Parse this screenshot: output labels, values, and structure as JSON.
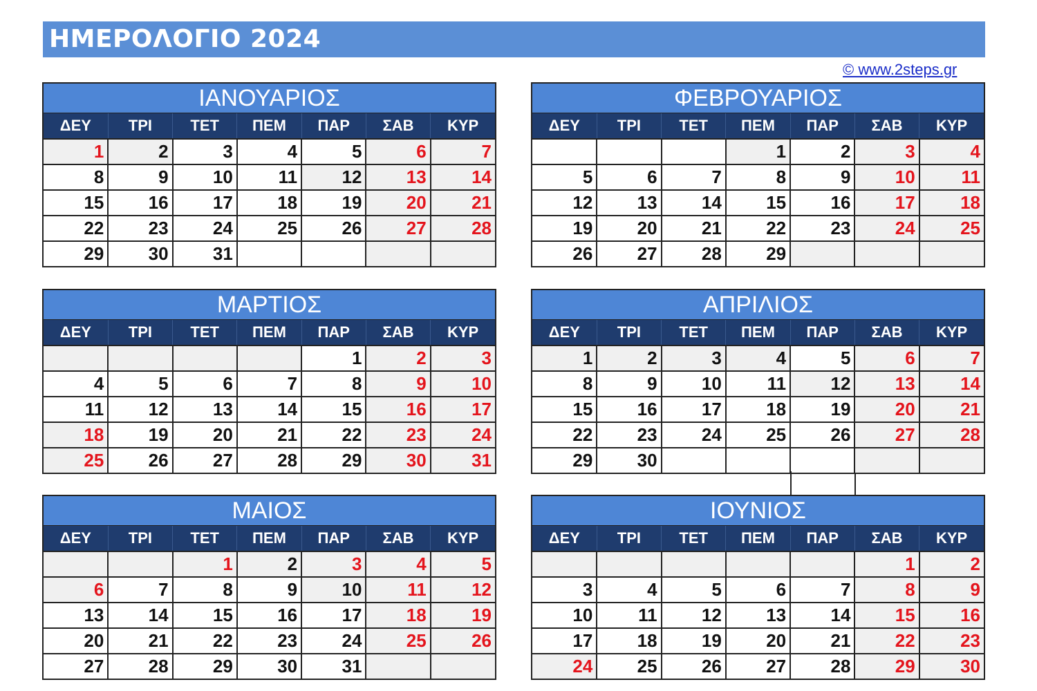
{
  "title": "ΗΜΕΡΟΛΟΓΙΟ 2024",
  "copyright": "© www.2steps.gr",
  "weekdays": [
    "ΔΕΥ",
    "ΤΡΙ",
    "ΤΕΤ",
    "ΠΕΜ",
    "ΠΑΡ",
    "ΣΑΒ",
    "ΚΥΡ"
  ],
  "colors": {
    "title_bg": "#5b8fd6",
    "month_bg": "#4e86d6",
    "weekday_bg": "#1f3c6e",
    "holiday_red": "#e4141c",
    "shaded_cell": "#f0f0f0"
  },
  "months": [
    {
      "name": "ΙΑΝΟΥΑΡΙΟΣ",
      "rows": [
        [
          {
            "d": "1",
            "red": true,
            "sh": true
          },
          {
            "d": "2",
            "sh": true
          },
          {
            "d": "3"
          },
          {
            "d": "4"
          },
          {
            "d": "5"
          },
          {
            "d": "6",
            "red": true,
            "sh": true
          },
          {
            "d": "7",
            "red": true,
            "sh": true
          }
        ],
        [
          {
            "d": "8"
          },
          {
            "d": "9"
          },
          {
            "d": "10"
          },
          {
            "d": "11"
          },
          {
            "d": "12",
            "sh": true
          },
          {
            "d": "13",
            "red": true,
            "sh": true
          },
          {
            "d": "14",
            "red": true,
            "sh": true
          }
        ],
        [
          {
            "d": "15"
          },
          {
            "d": "16"
          },
          {
            "d": "17"
          },
          {
            "d": "18"
          },
          {
            "d": "19"
          },
          {
            "d": "20",
            "red": true,
            "sh": true
          },
          {
            "d": "21",
            "red": true,
            "sh": true
          }
        ],
        [
          {
            "d": "22"
          },
          {
            "d": "23"
          },
          {
            "d": "24"
          },
          {
            "d": "25"
          },
          {
            "d": "26"
          },
          {
            "d": "27",
            "red": true,
            "sh": true
          },
          {
            "d": "28",
            "red": true,
            "sh": true
          }
        ],
        [
          {
            "d": "29"
          },
          {
            "d": "30"
          },
          {
            "d": "31"
          },
          {
            "d": ""
          },
          {
            "d": ""
          },
          {
            "d": "",
            "sh": true
          },
          {
            "d": "",
            "sh": true
          }
        ]
      ]
    },
    {
      "name": "ΦΕΒΡΟΥΑΡΙΟΣ",
      "rows": [
        [
          {
            "d": ""
          },
          {
            "d": ""
          },
          {
            "d": ""
          },
          {
            "d": "1",
            "sh": true
          },
          {
            "d": "2"
          },
          {
            "d": "3",
            "red": true,
            "sh": true
          },
          {
            "d": "4",
            "red": true,
            "sh": true
          }
        ],
        [
          {
            "d": "5"
          },
          {
            "d": "6"
          },
          {
            "d": "7"
          },
          {
            "d": "8"
          },
          {
            "d": "9"
          },
          {
            "d": "10",
            "red": true,
            "sh": true
          },
          {
            "d": "11",
            "red": true,
            "sh": true
          }
        ],
        [
          {
            "d": "12"
          },
          {
            "d": "13"
          },
          {
            "d": "14"
          },
          {
            "d": "15"
          },
          {
            "d": "16"
          },
          {
            "d": "17",
            "red": true,
            "sh": true
          },
          {
            "d": "18",
            "red": true,
            "sh": true
          }
        ],
        [
          {
            "d": "19"
          },
          {
            "d": "20"
          },
          {
            "d": "21"
          },
          {
            "d": "22"
          },
          {
            "d": "23"
          },
          {
            "d": "24",
            "red": true,
            "sh": true
          },
          {
            "d": "25",
            "red": true,
            "sh": true
          }
        ],
        [
          {
            "d": "26"
          },
          {
            "d": "27"
          },
          {
            "d": "28"
          },
          {
            "d": "29"
          },
          {
            "d": "",
            "sh": true
          },
          {
            "d": "",
            "sh": true
          },
          {
            "d": "",
            "sh": true
          }
        ]
      ]
    },
    {
      "name": "ΜΑΡΤΙΟΣ",
      "rows": [
        [
          {
            "d": "",
            "sh": true
          },
          {
            "d": "",
            "sh": true
          },
          {
            "d": "",
            "sh": true
          },
          {
            "d": "",
            "sh": true
          },
          {
            "d": "1"
          },
          {
            "d": "2",
            "red": true,
            "sh": true
          },
          {
            "d": "3",
            "red": true,
            "sh": true
          }
        ],
        [
          {
            "d": "4"
          },
          {
            "d": "5"
          },
          {
            "d": "6"
          },
          {
            "d": "7"
          },
          {
            "d": "8"
          },
          {
            "d": "9",
            "red": true,
            "sh": true
          },
          {
            "d": "10",
            "red": true,
            "sh": true
          }
        ],
        [
          {
            "d": "11"
          },
          {
            "d": "12"
          },
          {
            "d": "13"
          },
          {
            "d": "14"
          },
          {
            "d": "15"
          },
          {
            "d": "16",
            "red": true,
            "sh": true
          },
          {
            "d": "17",
            "red": true,
            "sh": true
          }
        ],
        [
          {
            "d": "18",
            "red": true,
            "sh": true
          },
          {
            "d": "19"
          },
          {
            "d": "20"
          },
          {
            "d": "21"
          },
          {
            "d": "22"
          },
          {
            "d": "23",
            "red": true,
            "sh": true
          },
          {
            "d": "24",
            "red": true,
            "sh": true
          }
        ],
        [
          {
            "d": "25",
            "red": true,
            "sh": true
          },
          {
            "d": "26"
          },
          {
            "d": "27"
          },
          {
            "d": "28"
          },
          {
            "d": "29"
          },
          {
            "d": "30",
            "red": true,
            "sh": true
          },
          {
            "d": "31",
            "red": true,
            "sh": true
          }
        ]
      ]
    },
    {
      "name": "ΑΠΡΙΛΙΟΣ",
      "rows": [
        [
          {
            "d": "1",
            "sh": true
          },
          {
            "d": "2",
            "sh": true
          },
          {
            "d": "3",
            "sh": true
          },
          {
            "d": "4",
            "sh": true
          },
          {
            "d": "5"
          },
          {
            "d": "6",
            "red": true,
            "sh": true
          },
          {
            "d": "7",
            "red": true,
            "sh": true
          }
        ],
        [
          {
            "d": "8"
          },
          {
            "d": "9"
          },
          {
            "d": "10"
          },
          {
            "d": "11"
          },
          {
            "d": "12",
            "sh": true
          },
          {
            "d": "13",
            "red": true,
            "sh": true
          },
          {
            "d": "14",
            "red": true,
            "sh": true
          }
        ],
        [
          {
            "d": "15"
          },
          {
            "d": "16"
          },
          {
            "d": "17"
          },
          {
            "d": "18"
          },
          {
            "d": "19"
          },
          {
            "d": "20",
            "red": true,
            "sh": true
          },
          {
            "d": "21",
            "red": true,
            "sh": true
          }
        ],
        [
          {
            "d": "22"
          },
          {
            "d": "23"
          },
          {
            "d": "24"
          },
          {
            "d": "25"
          },
          {
            "d": "26"
          },
          {
            "d": "27",
            "red": true,
            "sh": true
          },
          {
            "d": "28",
            "red": true,
            "sh": true
          }
        ],
        [
          {
            "d": "29"
          },
          {
            "d": "30"
          },
          {
            "d": ""
          },
          {
            "d": ""
          },
          {
            "d": ""
          },
          {
            "d": "",
            "sh": true
          },
          {
            "d": "",
            "sh": true
          }
        ]
      ]
    },
    {
      "name": "ΜΑΙΟΣ",
      "rows": [
        [
          {
            "d": "",
            "sh": true
          },
          {
            "d": "",
            "sh": true
          },
          {
            "d": "1",
            "red": true,
            "sh": true
          },
          {
            "d": "2",
            "sh": true
          },
          {
            "d": "3",
            "red": true,
            "sh": true
          },
          {
            "d": "4",
            "red": true,
            "sh": true
          },
          {
            "d": "5",
            "red": true,
            "sh": true
          }
        ],
        [
          {
            "d": "6",
            "red": true,
            "sh": true
          },
          {
            "d": "7"
          },
          {
            "d": "8"
          },
          {
            "d": "9"
          },
          {
            "d": "10",
            "sh": true
          },
          {
            "d": "11",
            "red": true,
            "sh": true
          },
          {
            "d": "12",
            "red": true,
            "sh": true
          }
        ],
        [
          {
            "d": "13"
          },
          {
            "d": "14"
          },
          {
            "d": "15"
          },
          {
            "d": "16"
          },
          {
            "d": "17"
          },
          {
            "d": "18",
            "red": true,
            "sh": true
          },
          {
            "d": "19",
            "red": true,
            "sh": true
          }
        ],
        [
          {
            "d": "20"
          },
          {
            "d": "21"
          },
          {
            "d": "22"
          },
          {
            "d": "23"
          },
          {
            "d": "24"
          },
          {
            "d": "25",
            "red": true,
            "sh": true
          },
          {
            "d": "26",
            "red": true,
            "sh": true
          }
        ],
        [
          {
            "d": "27"
          },
          {
            "d": "28"
          },
          {
            "d": "29"
          },
          {
            "d": "30"
          },
          {
            "d": "31"
          },
          {
            "d": "",
            "sh": true
          },
          {
            "d": "",
            "sh": true
          }
        ]
      ]
    },
    {
      "name": "ΙΟΥΝΙΟΣ",
      "rows": [
        [
          {
            "d": "",
            "sh": true
          },
          {
            "d": "",
            "sh": true
          },
          {
            "d": "",
            "sh": true
          },
          {
            "d": "",
            "sh": true
          },
          {
            "d": "",
            "sh": true
          },
          {
            "d": "1",
            "red": true,
            "sh": true
          },
          {
            "d": "2",
            "red": true,
            "sh": true
          }
        ],
        [
          {
            "d": "3"
          },
          {
            "d": "4"
          },
          {
            "d": "5"
          },
          {
            "d": "6"
          },
          {
            "d": "7"
          },
          {
            "d": "8",
            "red": true,
            "sh": true
          },
          {
            "d": "9",
            "red": true,
            "sh": true
          }
        ],
        [
          {
            "d": "10"
          },
          {
            "d": "11"
          },
          {
            "d": "12"
          },
          {
            "d": "13"
          },
          {
            "d": "14"
          },
          {
            "d": "15",
            "red": true,
            "sh": true
          },
          {
            "d": "16",
            "red": true,
            "sh": true
          }
        ],
        [
          {
            "d": "17"
          },
          {
            "d": "18"
          },
          {
            "d": "19"
          },
          {
            "d": "20"
          },
          {
            "d": "21"
          },
          {
            "d": "22",
            "red": true,
            "sh": true
          },
          {
            "d": "23",
            "red": true,
            "sh": true
          }
        ],
        [
          {
            "d": "24",
            "red": true,
            "sh": true
          },
          {
            "d": "25"
          },
          {
            "d": "26"
          },
          {
            "d": "27"
          },
          {
            "d": "28"
          },
          {
            "d": "29",
            "red": true,
            "sh": true
          },
          {
            "d": "30",
            "red": true,
            "sh": true
          }
        ]
      ]
    }
  ]
}
